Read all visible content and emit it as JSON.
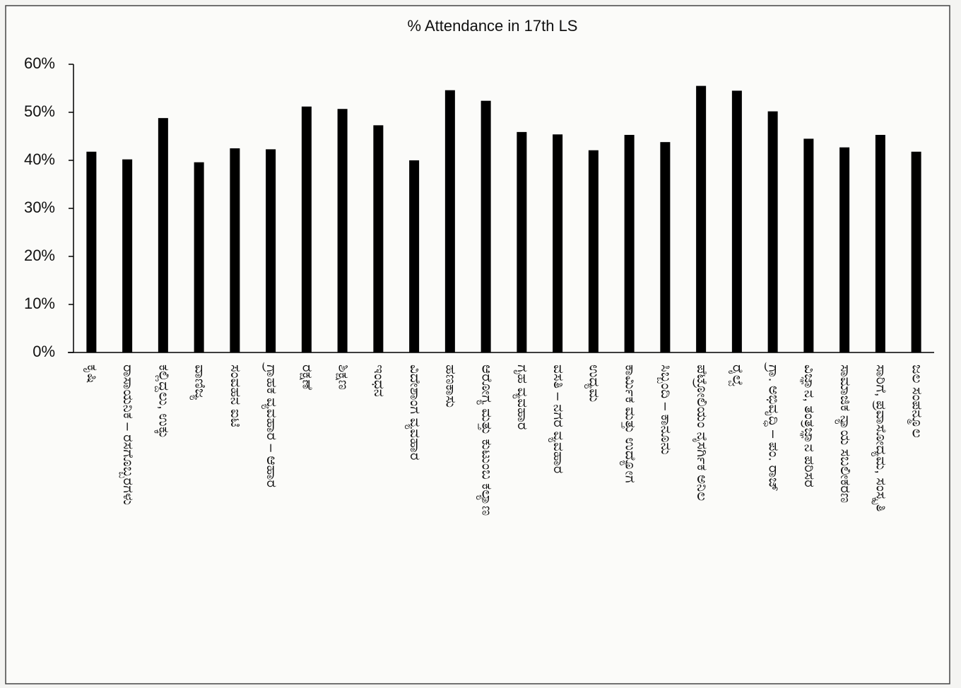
{
  "chart_data": {
    "type": "bar",
    "title": "% Attendance in 17th LS",
    "categories": [
      "ಕೃಷಿ",
      "ರಾಸಾಯನಿಕ – ರಸಗೊಬ್ಬರಗಳು",
      "ಕಲ್ಲಿದ್ದಲು, ಉಕ್ಕು",
      "ವಾಣಿಜ್ಯ",
      "ಸಂವಹನ ಐಟಿ",
      "ಗ್ರಾಹಕ ವ್ಯವಹಾರ – ಆಹಾರ",
      "ರಕ್ಷಣೆ",
      "ಶಿಕ್ಷಣ",
      "ಇಂಧನ",
      "ವಿದೇಶಾಂಗ ವ್ಯವಹಾರ",
      "ಹಣಕಾಸು",
      "ಆರೋಗ್ಯ ಮತ್ತು ಕುಟುಂಬ ಕಲ್ಯಾಣ",
      "ಗೃಹ ವ್ಯವಹಾರ",
      "ವಸತಿ – ನಗರ ವ್ಯವಹಾರ",
      "ಉದ್ಯಮ",
      "ಕಾರ್ಮಿಕ ಮತ್ತು ಉದ್ಯೋಗ",
      "ಸಿಬ್ಬಂದಿ – ಕಾನೂನು",
      "ಪೆಟ್ರೋಲಿಯಂ ನೈಸರ್ಗಿಕ ಅನಿಲ",
      "ರೈಲ್ವೆ",
      "ಗ್ರಾ. ಅಭಿವೃದ್ಧಿ – ಪಂ. ರಾಜ್",
      "ವಿಜ್ಞಾನ, ತಂತ್ರಜ್ಞಾನ ಪರಿಸರ",
      "ಸಾಮಾಜಿಕ ನ್ಯಾಯ ಸಬಲೀಕರಣ",
      "ಸಾರಿಗೆ, ಪ್ರವಾಸೋದ್ಯಮ, ಸಂಸ್ಕೃತಿ",
      "ಜಲ ಸಂಪನ್ಮೂಲ"
    ],
    "values": [
      41.8,
      40.2,
      48.8,
      39.6,
      42.5,
      42.3,
      51.2,
      50.7,
      47.3,
      40,
      54.6,
      52.4,
      45.9,
      45.4,
      42.1,
      45.3,
      43.8,
      55.5,
      54.5,
      50.2,
      44.5,
      42.7,
      45.3,
      41.8
    ],
    "color": "#000000",
    "ylim": [
      0,
      60
    ],
    "yticks": [
      {
        "value": 0,
        "label": "0%"
      },
      {
        "value": 10,
        "label": "10%"
      },
      {
        "value": 20,
        "label": "20%"
      },
      {
        "value": 30,
        "label": "30%"
      },
      {
        "value": 40,
        "label": "40%"
      },
      {
        "value": 50,
        "label": "50%"
      },
      {
        "value": 60,
        "label": "60%"
      }
    ],
    "grid": false
  }
}
